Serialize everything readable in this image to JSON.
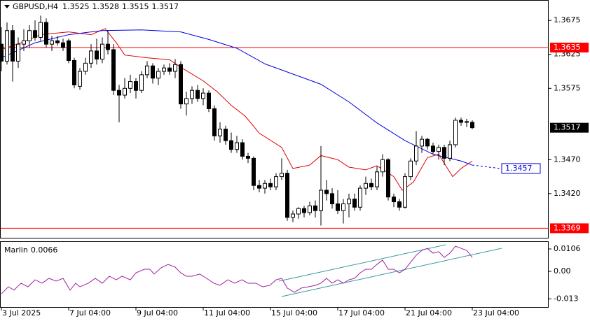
{
  "chart_data": {
    "type": "candlestick",
    "symbol": "GBPUSD,H4",
    "categories": [
      "3 Jul 2025",
      null,
      null,
      null,
      null,
      null,
      null,
      null,
      null,
      null,
      null,
      null,
      "7 Jul 04:00",
      null,
      null,
      null,
      null,
      null,
      null,
      null,
      null,
      null,
      null,
      null,
      "9 Jul 04:00",
      null,
      null,
      null,
      null,
      null,
      null,
      null,
      null,
      null,
      null,
      null,
      "11 Jul 04:00",
      null,
      null,
      null,
      null,
      null,
      null,
      null,
      null,
      null,
      null,
      null,
      "15 Jul 04:00",
      null,
      null,
      null,
      null,
      null,
      null,
      null,
      null,
      null,
      null,
      null,
      "17 Jul 04:00",
      null,
      null,
      null,
      null,
      null,
      null,
      null,
      null,
      null,
      null,
      null,
      "21 Jul 04:00",
      null,
      null,
      null,
      null,
      null,
      null,
      null,
      null,
      null,
      null,
      null,
      "23 Jul 04:00"
    ],
    "open": [
      1.364,
      1.3615,
      1.366,
      1.3615,
      1.364,
      1.3645,
      1.366,
      1.365,
      1.3672,
      1.364,
      1.3645,
      1.3642,
      1.3645,
      1.3616,
      1.3578,
      1.36,
      1.3612,
      1.363,
      1.3618,
      1.364,
      1.3632,
      1.3572,
      1.3565,
      1.3575,
      1.3585,
      1.3572,
      1.3595,
      1.3608,
      1.359,
      1.36,
      1.3605,
      1.36,
      1.361,
      1.3552,
      1.356,
      1.3572,
      1.356,
      1.3568,
      1.3545,
      1.3505,
      1.3515,
      1.3498,
      1.3485,
      1.3495,
      1.3475,
      1.3472,
      1.3432,
      1.3428,
      1.3435,
      1.343,
      1.3445,
      1.345,
      1.3385,
      1.339,
      1.3398,
      1.3392,
      1.3402,
      1.3395,
      1.3425,
      1.342,
      1.3405,
      1.3395,
      1.3405,
      1.3412,
      1.34,
      1.3428,
      1.3435,
      1.343,
      1.3452,
      1.347,
      1.3415,
      1.3408,
      1.34,
      1.3445,
      1.3468,
      1.349,
      1.35,
      1.349,
      1.3482,
      1.3488,
      1.3472,
      1.3492,
      1.3528,
      1.3525,
      1.3525
    ],
    "high": [
      1.3665,
      1.3672,
      1.3668,
      1.365,
      1.3662,
      1.3668,
      1.3675,
      1.3682,
      1.3678,
      1.3652,
      1.3652,
      1.3648,
      1.3648,
      1.362,
      1.3605,
      1.362,
      1.364,
      1.3648,
      1.365,
      1.366,
      1.364,
      1.358,
      1.359,
      1.3595,
      1.359,
      1.36,
      1.3615,
      1.3612,
      1.3605,
      1.361,
      1.3612,
      1.3618,
      1.3615,
      1.357,
      1.3578,
      1.358,
      1.3575,
      1.3572,
      1.355,
      1.3525,
      1.352,
      1.351,
      1.3505,
      1.35,
      1.348,
      1.3475,
      1.344,
      1.344,
      1.3442,
      1.345,
      1.3472,
      1.3455,
      1.3395,
      1.34,
      1.3402,
      1.3408,
      1.341,
      1.349,
      1.344,
      1.3428,
      1.3425,
      1.3412,
      1.342,
      1.342,
      1.3432,
      1.3445,
      1.3442,
      1.346,
      1.3478,
      1.3472,
      1.342,
      1.3412,
      1.345,
      1.3472,
      1.3512,
      1.3505,
      1.3502,
      1.3495,
      1.3492,
      1.3492,
      1.3498,
      1.3532,
      1.3532,
      1.353,
      1.3528
    ],
    "low": [
      1.36,
      1.361,
      1.3585,
      1.3605,
      1.363,
      1.3635,
      1.3645,
      1.3645,
      1.3635,
      1.363,
      1.3638,
      1.363,
      1.3612,
      1.3575,
      1.3573,
      1.3595,
      1.3605,
      1.361,
      1.3612,
      1.3625,
      1.3565,
      1.3525,
      1.356,
      1.3568,
      1.356,
      1.3568,
      1.359,
      1.3582,
      1.358,
      1.3595,
      1.3595,
      1.359,
      1.3545,
      1.3535,
      1.3552,
      1.3555,
      1.355,
      1.354,
      1.3498,
      1.3495,
      1.3492,
      1.348,
      1.348,
      1.347,
      1.3465,
      1.3425,
      1.3422,
      1.342,
      1.3425,
      1.3425,
      1.344,
      1.338,
      1.3378,
      1.3383,
      1.3385,
      1.3388,
      1.3385,
      1.3373,
      1.341,
      1.3398,
      1.339,
      1.3376,
      1.3385,
      1.3395,
      1.3395,
      1.3418,
      1.3425,
      1.3425,
      1.3445,
      1.341,
      1.34,
      1.3395,
      1.3398,
      1.344,
      1.3462,
      1.348,
      1.3485,
      1.3478,
      1.347,
      1.3462,
      1.3468,
      1.3488,
      1.352,
      1.3518,
      1.3515
    ],
    "close": [
      1.3615,
      1.366,
      1.3615,
      1.364,
      1.3645,
      1.366,
      1.365,
      1.3672,
      1.364,
      1.3645,
      1.3642,
      1.3635,
      1.3616,
      1.358,
      1.36,
      1.3612,
      1.363,
      1.3618,
      1.364,
      1.3632,
      1.3572,
      1.3565,
      1.3575,
      1.3585,
      1.3572,
      1.3595,
      1.3608,
      1.359,
      1.36,
      1.3605,
      1.36,
      1.361,
      1.3552,
      1.356,
      1.3572,
      1.356,
      1.3568,
      1.3545,
      1.3505,
      1.3515,
      1.3498,
      1.3485,
      1.3495,
      1.3475,
      1.3472,
      1.3432,
      1.3428,
      1.3435,
      1.343,
      1.3445,
      1.345,
      1.3385,
      1.339,
      1.3398,
      1.3392,
      1.3402,
      1.3395,
      1.3425,
      1.342,
      1.3405,
      1.3395,
      1.3405,
      1.3412,
      1.34,
      1.3428,
      1.3435,
      1.343,
      1.3452,
      1.347,
      1.3415,
      1.3408,
      1.34,
      1.3445,
      1.3468,
      1.349,
      1.35,
      1.349,
      1.3482,
      1.3488,
      1.3472,
      1.3492,
      1.3528,
      1.3525,
      1.3526,
      1.3517
    ],
    "colors": {
      "up": "#ffffff",
      "down": "#000000",
      "wick": "#000000"
    },
    "ylim": [
      1.3355,
      1.3704
    ],
    "yticks": [
      1.3675,
      1.3625,
      1.3575,
      {
        "value": 1.347,
        "label": "1.3470"
      },
      {
        "value": 1.342,
        "label": "1.3420"
      }
    ],
    "lines": [
      {
        "color": "#e00000",
        "x": [
          0,
          3.5,
          7,
          12,
          16,
          18.5,
          20.5,
          22,
          26,
          30,
          32,
          36,
          38.5,
          41,
          43.5,
          46,
          50,
          52,
          55,
          57,
          60,
          62,
          65,
          67,
          70,
          71.5,
          73.5,
          76,
          78,
          80.5,
          82,
          84
        ],
        "values": [
          1.3632,
          1.3642,
          1.3654,
          1.3658,
          1.3654,
          1.3663,
          1.3642,
          1.3624,
          1.362,
          1.3617,
          1.3606,
          1.3586,
          1.357,
          1.355,
          1.3534,
          1.3509,
          1.3488,
          1.3457,
          1.3462,
          1.3476,
          1.347,
          1.3459,
          1.3455,
          1.3461,
          1.3445,
          1.3425,
          1.3437,
          1.3473,
          1.3478,
          1.3445,
          1.3457,
          1.3468
        ]
      },
      {
        "color": "#0000e0",
        "x": [
          0,
          6,
          12,
          18,
          25,
          32,
          37,
          42,
          47,
          52,
          57,
          62,
          67,
          72,
          77,
          82,
          84
        ],
        "values": [
          1.362,
          1.3642,
          1.3654,
          1.366,
          1.3661,
          1.3658,
          1.3647,
          1.3634,
          1.3611,
          1.3596,
          1.3581,
          1.3555,
          1.3524,
          1.3498,
          1.3478,
          1.3468,
          1.3462
        ],
        "projection": {
          "x": 89,
          "value": 1.3457
        }
      }
    ],
    "levels": [
      {
        "value": 1.3635,
        "color": "#ff0000"
      },
      {
        "value": 1.3369,
        "color": "#ff0000"
      }
    ],
    "indicator": {
      "name": "Marlin",
      "color": "#a020a0",
      "x": [
        0,
        1.25,
        2.25,
        3.5,
        4.75,
        6,
        7.25,
        8.5,
        9.75,
        11,
        12.25,
        13.25,
        14,
        15.5,
        16.75,
        18,
        19.25,
        20.5,
        21.5,
        23,
        24,
        25.5,
        26.5,
        27.25,
        28.5,
        29.75,
        31,
        32,
        33,
        34,
        35.4,
        36.6,
        37.9,
        39,
        40.4,
        41.6,
        42.9,
        44,
        45.4,
        46.6,
        47.9,
        49,
        50,
        51,
        52.25,
        53.5,
        54.75,
        56,
        57,
        58,
        59,
        60,
        61,
        62,
        63,
        64,
        65,
        66,
        67,
        68,
        69,
        70,
        71,
        72,
        73,
        74,
        75,
        76,
        77,
        78,
        79,
        80,
        81,
        82,
        83,
        84
      ],
      "values": [
        -0.0106,
        -0.0073,
        -0.0089,
        -0.0056,
        -0.0073,
        -0.004,
        -0.0056,
        -0.0033,
        -0.0046,
        -0.0033,
        -0.0089,
        -0.0056,
        -0.0073,
        -0.0056,
        -0.0033,
        -0.0056,
        -0.0023,
        -0.004,
        -0.0023,
        -0.004,
        -0.0007,
        0.001,
        0.001,
        -0.0013,
        0.0017,
        0.0033,
        0.002,
        -0.0007,
        -0.0023,
        -0.0023,
        -0.0013,
        -0.0033,
        -0.0056,
        -0.0066,
        -0.004,
        -0.0056,
        -0.004,
        -0.0056,
        -0.0056,
        -0.0073,
        -0.0066,
        -0.004,
        -0.0033,
        -0.0079,
        -0.0099,
        -0.0079,
        -0.0073,
        -0.0066,
        -0.0056,
        -0.0033,
        -0.0056,
        -0.004,
        -0.0056,
        -0.004,
        -0.0033,
        -0.0007,
        0.001,
        0.001,
        0.0033,
        0.0053,
        0.001,
        0.001,
        -0.0007,
        0.001,
        0.0043,
        0.0076,
        0.0099,
        0.0109,
        0.0086,
        0.0093,
        0.0066,
        0.0086,
        0.0119,
        0.0109,
        0.0099,
        0.0066
      ],
      "ylim": [
        -0.0172,
        0.0139
      ],
      "yticks": [
        0.0106,
        {
          "value": 0,
          "label": "0.00"
        },
        -0.013
      ]
    }
  }
}
